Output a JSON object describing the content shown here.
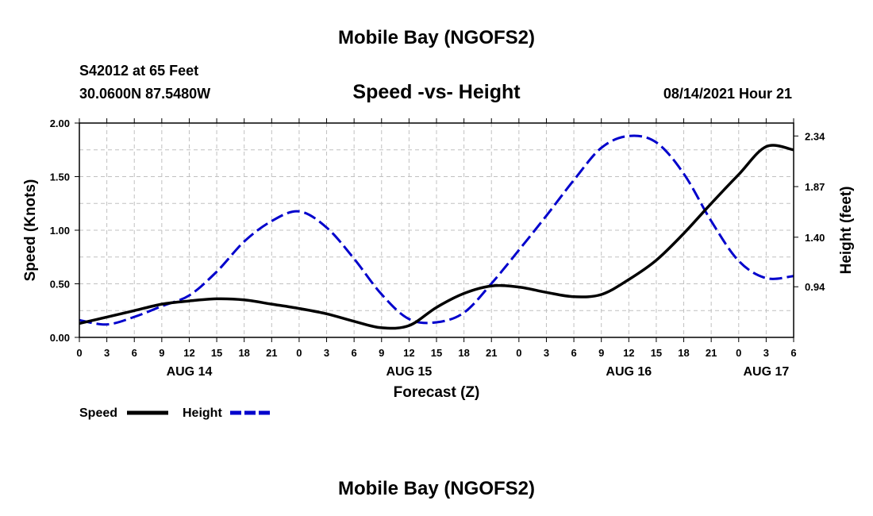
{
  "header": {
    "title": "Mobile Bay (NGOFS2)",
    "station": "S42012 at 65 Feet",
    "coords": "30.0600N  87.5480W",
    "datetime": "08/14/2021 Hour 21"
  },
  "footer": {
    "title": "Mobile Bay (NGOFS2)"
  },
  "chart_data": {
    "type": "line",
    "title": "Speed -vs- Height",
    "xlabel": "Forecast (Z)",
    "ylabel_left": "Speed (Knots)",
    "ylabel_right": "Height (feet)",
    "grid": true,
    "x_range": [
      0,
      78
    ],
    "x_ticks": [
      0,
      3,
      6,
      9,
      12,
      15,
      18,
      21,
      24,
      27,
      30,
      33,
      36,
      39,
      42,
      45,
      48,
      51,
      54,
      57,
      60,
      63,
      66,
      69,
      72,
      75,
      78
    ],
    "x_tick_labels": [
      "0",
      "3",
      "6",
      "9",
      "12",
      "15",
      "18",
      "21",
      "0",
      "3",
      "6",
      "9",
      "12",
      "15",
      "18",
      "21",
      "0",
      "3",
      "6",
      "9",
      "12",
      "15",
      "18",
      "21",
      "0",
      "3",
      "6"
    ],
    "day_labels": [
      {
        "x": 12,
        "label": "AUG 14"
      },
      {
        "x": 36,
        "label": "AUG 15"
      },
      {
        "x": 60,
        "label": "AUG 16"
      },
      {
        "x": 75,
        "label": "AUG 17"
      }
    ],
    "y_left": {
      "range": [
        0,
        2
      ],
      "ticks": [
        0,
        0.5,
        1,
        1.5,
        2
      ],
      "tick_labels": [
        "0.00",
        "0.50",
        "1.00",
        "1.50",
        "2.00"
      ]
    },
    "y_right": {
      "range": [
        0.47,
        2.46
      ],
      "ticks": [
        0.94,
        1.4,
        1.87,
        2.34
      ],
      "tick_labels": [
        "0.94",
        "1.40",
        "1.87",
        "2.34"
      ]
    },
    "series": [
      {
        "name": "Speed",
        "axis": "left",
        "color": "#000000",
        "style": "solid",
        "x": [
          0,
          3,
          6,
          9,
          12,
          15,
          18,
          21,
          24,
          27,
          30,
          33,
          36,
          39,
          42,
          45,
          48,
          51,
          54,
          57,
          60,
          63,
          66,
          69,
          72,
          75,
          78
        ],
        "y": [
          0.13,
          0.19,
          0.25,
          0.31,
          0.34,
          0.36,
          0.35,
          0.31,
          0.27,
          0.22,
          0.15,
          0.09,
          0.11,
          0.28,
          0.41,
          0.48,
          0.47,
          0.42,
          0.38,
          0.4,
          0.54,
          0.72,
          0.97,
          1.25,
          1.52,
          1.78,
          1.75
        ]
      },
      {
        "name": "Height",
        "axis": "right",
        "color": "#0000cc",
        "style": "dashed",
        "x": [
          0,
          3,
          6,
          9,
          12,
          15,
          18,
          21,
          24,
          27,
          30,
          33,
          36,
          39,
          42,
          45,
          48,
          51,
          54,
          57,
          60,
          63,
          66,
          69,
          72,
          75,
          78
        ],
        "y": [
          0.63,
          0.59,
          0.66,
          0.76,
          0.86,
          1.08,
          1.36,
          1.55,
          1.64,
          1.49,
          1.2,
          0.87,
          0.64,
          0.61,
          0.7,
          0.97,
          1.28,
          1.6,
          1.93,
          2.23,
          2.34,
          2.28,
          1.99,
          1.55,
          1.18,
          1.02,
          1.04
        ]
      }
    ],
    "legend": {
      "position": "bottom-left",
      "entries": [
        "Speed",
        "Height"
      ]
    }
  }
}
